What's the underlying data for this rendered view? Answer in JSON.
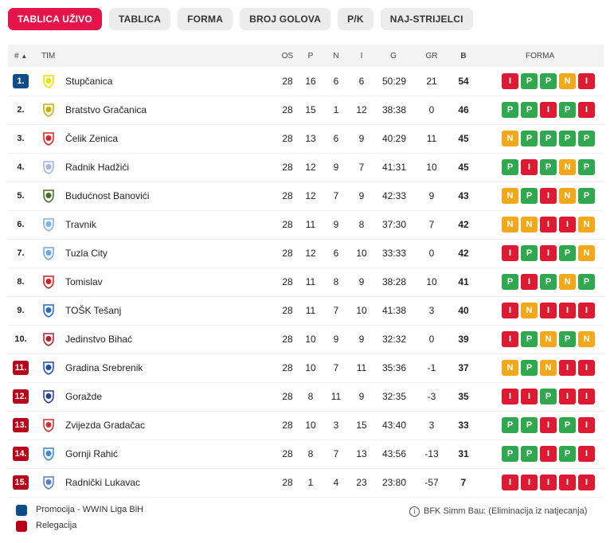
{
  "tabs": [
    "TABLICA UŽIVO",
    "TABLICA",
    "FORMA",
    "BROJ GOLOVA",
    "P/K",
    "NAJ-STRIJELCI"
  ],
  "header": {
    "rank": "#",
    "sort_arrow": "▲",
    "team": "TIM",
    "os": "OS",
    "p": "P",
    "n": "N",
    "i": "I",
    "g": "G",
    "gr": "GR",
    "b": "B",
    "forma": "FORMA"
  },
  "rows": [
    {
      "rank": "1.",
      "zone": "promo",
      "team": "Stupčanica",
      "crest_color": "#e5e600",
      "os": "28",
      "p": "16",
      "n": "6",
      "i": "6",
      "g": "50:29",
      "gr": "21",
      "b": "54",
      "form": [
        "I",
        "P",
        "P",
        "N",
        "I"
      ]
    },
    {
      "rank": "2.",
      "zone": "none",
      "team": "Bratstvo Gračanica",
      "crest_color": "#c8b000",
      "os": "28",
      "p": "15",
      "n": "1",
      "i": "12",
      "g": "38:38",
      "gr": "0",
      "b": "46",
      "form": [
        "P",
        "P",
        "I",
        "P",
        "I"
      ]
    },
    {
      "rank": "3.",
      "zone": "none",
      "team": "Čelik Zenica",
      "crest_color": "#d22",
      "os": "28",
      "p": "13",
      "n": "6",
      "i": "9",
      "g": "40:29",
      "gr": "11",
      "b": "45",
      "form": [
        "N",
        "P",
        "P",
        "P",
        "P"
      ]
    },
    {
      "rank": "4.",
      "zone": "none",
      "team": "Radnik Hadžići",
      "crest_color": "#aab4d8",
      "os": "28",
      "p": "12",
      "n": "9",
      "i": "7",
      "g": "41:31",
      "gr": "10",
      "b": "45",
      "form": [
        "P",
        "I",
        "P",
        "N",
        "P"
      ]
    },
    {
      "rank": "5.",
      "zone": "none",
      "team": "Budućnost Banovići",
      "crest_color": "#4a6a2a",
      "os": "28",
      "p": "12",
      "n": "7",
      "i": "9",
      "g": "42:33",
      "gr": "9",
      "b": "43",
      "form": [
        "N",
        "P",
        "I",
        "N",
        "P"
      ]
    },
    {
      "rank": "6.",
      "zone": "none",
      "team": "Travnik",
      "crest_color": "#7fb6e0",
      "os": "28",
      "p": "11",
      "n": "9",
      "i": "8",
      "g": "37:30",
      "gr": "7",
      "b": "42",
      "form": [
        "N",
        "N",
        "I",
        "I",
        "N"
      ]
    },
    {
      "rank": "7.",
      "zone": "none",
      "team": "Tuzla City",
      "crest_color": "#6fa8dc",
      "os": "28",
      "p": "12",
      "n": "6",
      "i": "10",
      "g": "33:33",
      "gr": "0",
      "b": "42",
      "form": [
        "I",
        "P",
        "I",
        "P",
        "N"
      ]
    },
    {
      "rank": "8.",
      "zone": "none",
      "team": "Tomislav",
      "crest_color": "#cc2222",
      "os": "28",
      "p": "11",
      "n": "8",
      "i": "9",
      "g": "38:28",
      "gr": "10",
      "b": "41",
      "form": [
        "P",
        "I",
        "P",
        "N",
        "P"
      ]
    },
    {
      "rank": "9.",
      "zone": "none",
      "team": "TOŠK Tešanj",
      "crest_color": "#2a6ab8",
      "os": "28",
      "p": "11",
      "n": "7",
      "i": "10",
      "g": "41:38",
      "gr": "3",
      "b": "40",
      "form": [
        "I",
        "N",
        "I",
        "I",
        "I"
      ]
    },
    {
      "rank": "10.",
      "zone": "none",
      "team": "Jedinstvo Bihać",
      "crest_color": "#b02030",
      "os": "28",
      "p": "10",
      "n": "9",
      "i": "9",
      "g": "32:32",
      "gr": "0",
      "b": "39",
      "form": [
        "I",
        "P",
        "N",
        "P",
        "N"
      ]
    },
    {
      "rank": "11.",
      "zone": "releg",
      "team": "Gradina Srebrenik",
      "crest_color": "#1f4fa0",
      "os": "28",
      "p": "10",
      "n": "7",
      "i": "11",
      "g": "35:36",
      "gr": "-1",
      "b": "37",
      "form": [
        "N",
        "P",
        "N",
        "I",
        "I"
      ]
    },
    {
      "rank": "12.",
      "zone": "releg",
      "team": "Goražde",
      "crest_color": "#2a3f8f",
      "os": "28",
      "p": "8",
      "n": "11",
      "i": "9",
      "g": "32:35",
      "gr": "-3",
      "b": "35",
      "form": [
        "I",
        "I",
        "P",
        "I",
        "I"
      ]
    },
    {
      "rank": "13.",
      "zone": "releg",
      "team": "Zvijezda Gradačac",
      "crest_color": "#cc3333",
      "os": "28",
      "p": "10",
      "n": "3",
      "i": "15",
      "g": "43:40",
      "gr": "3",
      "b": "33",
      "form": [
        "P",
        "P",
        "I",
        "P",
        "I"
      ]
    },
    {
      "rank": "14.",
      "zone": "releg",
      "team": "Gornji Rahić",
      "crest_color": "#3a8ad0",
      "os": "28",
      "p": "8",
      "n": "7",
      "i": "13",
      "g": "43:56",
      "gr": "-13",
      "b": "31",
      "form": [
        "P",
        "P",
        "I",
        "P",
        "I"
      ]
    },
    {
      "rank": "15.",
      "zone": "releg",
      "team": "Radnički Lukavac",
      "crest_color": "#5a7fc0",
      "os": "28",
      "p": "1",
      "n": "4",
      "i": "23",
      "g": "23:80",
      "gr": "-57",
      "b": "7",
      "form": [
        "I",
        "I",
        "I",
        "I",
        "I"
      ]
    }
  ],
  "legend": [
    {
      "label": "Promocija - WWIN Liga BiH",
      "color": "#0e4c87"
    },
    {
      "label": "Relegacija",
      "color": "#b7001a"
    }
  ],
  "note": "BFK Simm Bau: (Eliminacija iz natjecanja)",
  "colors": {
    "accent": "#e5144a",
    "win": "#2fa84f",
    "draw": "#f1a81b",
    "loss": "#dd1a32"
  }
}
